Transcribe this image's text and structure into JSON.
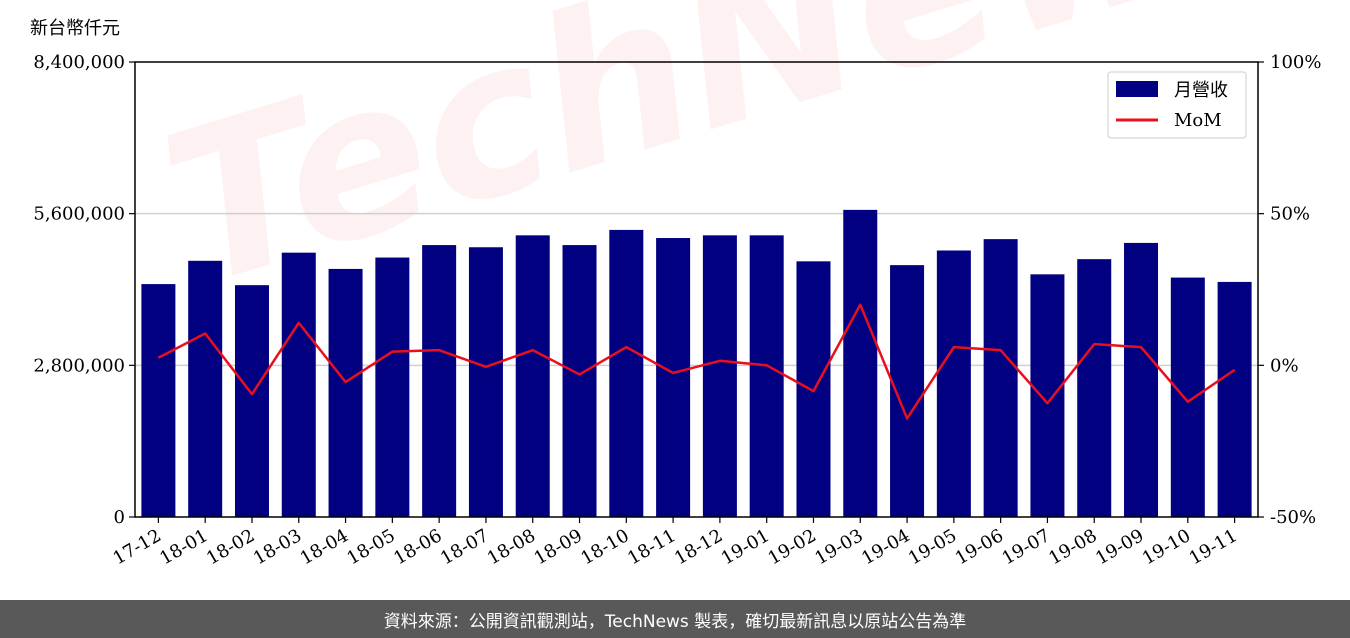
{
  "unit_label": "新台幣仟元",
  "watermark_text": "TechNews",
  "footer_text": "資料來源：公開資訊觀測站，TechNews 製表，確切最新訊息以原站公告為準",
  "colors": {
    "bar": "#000080",
    "line": "#e8101e",
    "footer_bg": "#595959",
    "grid": "#d0d0d0"
  },
  "chart_data": {
    "type": "bar",
    "categories": [
      "17-12",
      "18-01",
      "18-02",
      "18-03",
      "18-04",
      "18-05",
      "18-06",
      "18-07",
      "18-08",
      "18-09",
      "18-10",
      "18-11",
      "18-12",
      "19-01",
      "19-02",
      "19-03",
      "19-04",
      "19-05",
      "19-06",
      "19-07",
      "19-08",
      "19-09",
      "19-10",
      "19-11"
    ],
    "series": [
      {
        "name": "月營收",
        "type": "bar",
        "axis": "left",
        "values": [
          4300000,
          4730000,
          4280000,
          4880000,
          4580000,
          4790000,
          5020000,
          4980000,
          5200000,
          5020000,
          5300000,
          5150000,
          5200000,
          5200000,
          4720000,
          5670000,
          4650000,
          4920000,
          5130000,
          4480000,
          4760000,
          5060000,
          4420000,
          4340000
        ]
      },
      {
        "name": "MoM",
        "type": "line",
        "axis": "right",
        "values": [
          2.5,
          10.5,
          -9.5,
          14,
          -5.5,
          4.5,
          5,
          -0.5,
          5,
          -3,
          6,
          -2.5,
          1.5,
          0,
          -8.5,
          20,
          -17.5,
          6,
          5,
          -12.5,
          7,
          6,
          -12,
          -1.5
        ]
      }
    ],
    "left_axis": {
      "ylim": [
        0,
        8400000
      ],
      "ticks": [
        "0",
        "2,800,000",
        "5,600,000",
        "8,400,000"
      ]
    },
    "right_axis": {
      "ylim": [
        -50,
        100
      ],
      "ticks": [
        "-50%",
        "0%",
        "50%",
        "100%"
      ]
    },
    "grid": "horizontal",
    "legend": {
      "position": "top-right",
      "entries": [
        "月營收",
        "MoM"
      ]
    }
  }
}
